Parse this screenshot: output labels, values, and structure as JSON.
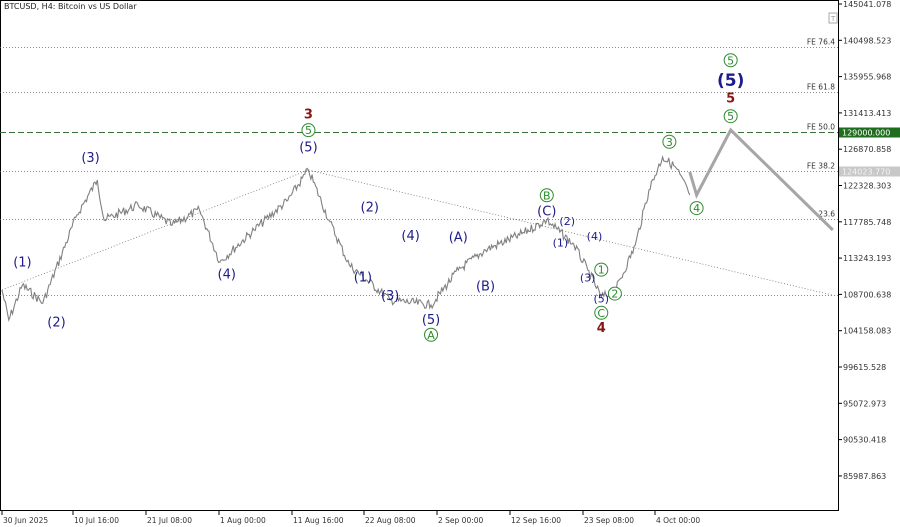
{
  "title": "BTCUSD, H4:  Bitcoin vs US Dollar",
  "colors": {
    "price": "#808080",
    "projection": "#a6a6a6",
    "navy": "#1c1c8a",
    "green": "#2e8b2e",
    "red": "#8b1414",
    "target_label_bg": "#1f6e1f",
    "fe38_label_bg": "#c8c8c8"
  },
  "chart_data": {
    "type": "line",
    "title": "BTCUSD, H4:  Bitcoin vs US Dollar",
    "x_start": "2025-06-30",
    "x_ticks": [
      "30 Jun 2025",
      "10 Jul 16:00",
      "21 Jul 08:00",
      "1 Aug 00:00",
      "11 Aug 16:00",
      "22 Aug 08:00",
      "2 Sep 00:00",
      "12 Sep 16:00",
      "23 Sep 08:00",
      "4 Oct 00:00"
    ],
    "y_ticks": [
      "145041.078",
      "140498.523",
      "135955.968",
      "131413.413",
      "126870.858",
      "122328.303",
      "117785.748",
      "113243.193",
      "108700.638",
      "104158.083",
      "99615.528",
      "95072.973",
      "90530.418",
      "85987.863"
    ],
    "ylim": [
      85987.863,
      145041.078
    ],
    "grid": false,
    "price_pivots": [
      [
        "2025-06-30",
        109251
      ],
      [
        "2025-07-01",
        105495
      ],
      [
        "2025-07-03",
        109875
      ],
      [
        "2025-07-06",
        107622
      ],
      [
        "2025-07-11",
        118635
      ],
      [
        "2025-07-14",
        123015
      ],
      [
        "2025-07-15",
        118009
      ],
      [
        "2025-07-20",
        119886
      ],
      [
        "2025-07-25",
        117383
      ],
      [
        "2025-07-29",
        119260
      ],
      [
        "2025-08-01",
        112753
      ],
      [
        "2025-08-06",
        116757
      ],
      [
        "2025-08-11",
        120511
      ],
      [
        "2025-08-14",
        124266
      ],
      [
        "2025-08-17",
        118009
      ],
      [
        "2025-08-20",
        112377
      ],
      [
        "2025-08-26",
        107997
      ],
      [
        "2025-09-01",
        107372
      ],
      [
        "2025-09-05",
        111752
      ],
      [
        "2025-09-09",
        114255
      ],
      [
        "2025-09-14",
        116132
      ],
      [
        "2025-09-18",
        118009
      ],
      [
        "2025-09-22",
        114881
      ],
      [
        "2025-09-24",
        111752
      ],
      [
        "2025-09-26",
        108373
      ],
      [
        "2025-09-28",
        108999
      ],
      [
        "2025-10-01",
        114881
      ],
      [
        "2025-10-03",
        121763
      ],
      [
        "2025-10-05",
        125893
      ],
      [
        "2025-10-07",
        124516
      ],
      [
        "2025-10-09",
        121137
      ]
    ],
    "projection": [
      [
        "2025-10-09",
        124015
      ],
      [
        "2025-10-10",
        121137
      ],
      [
        "2025-10-15",
        129271
      ],
      [
        "2025-10-30",
        116757
      ]
    ],
    "levels": [
      {
        "label": "FE 76.4",
        "price": 139600,
        "style": "dotted"
      },
      {
        "label": "FE 61.8",
        "price": 133970,
        "style": "dotted"
      },
      {
        "label": "FE 50.0",
        "price": 129000,
        "style": "dashed-green",
        "tag": "129000.000"
      },
      {
        "label": "FE 38.2",
        "price": 124150,
        "style": "dotted",
        "tag": "124023.770"
      },
      {
        "label": "23.6",
        "price": 118150,
        "style": "dotted"
      },
      {
        "label": "",
        "price": 108600,
        "style": "dotted"
      }
    ],
    "trendlines": [
      [
        [
          "2025-06-30",
          109251
        ],
        [
          "2025-08-14",
          124266
        ]
      ],
      [
        [
          "2025-08-14",
          124266
        ],
        [
          "2025-10-30",
          108600
        ]
      ]
    ],
    "wave_labels": [
      {
        "text": "(1)",
        "style": "navy",
        "date": "2025-07-03",
        "price": 112200
      },
      {
        "text": "(2)",
        "style": "navy",
        "date": "2025-07-08",
        "price": 104700
      },
      {
        "text": "(3)",
        "style": "navy",
        "date": "2025-07-13",
        "price": 125300
      },
      {
        "text": "(4)",
        "style": "navy",
        "date": "2025-08-02",
        "price": 110700
      },
      {
        "text": "(5)",
        "style": "navy",
        "date": "2025-08-14",
        "price": 126600
      },
      {
        "text": "5",
        "style": "green",
        "date": "2025-08-14",
        "price": 128750
      },
      {
        "text": "3",
        "style": "red",
        "date": "2025-08-14",
        "price": 130700
      },
      {
        "text": "(2)",
        "style": "navy",
        "date": "2025-08-23",
        "price": 119100
      },
      {
        "text": "(1)",
        "style": "navy",
        "date": "2025-08-22",
        "price": 110300
      },
      {
        "text": "(3)",
        "style": "navy",
        "date": "2025-08-26",
        "price": 108000
      },
      {
        "text": "(4)",
        "style": "navy",
        "date": "2025-08-29",
        "price": 115500
      },
      {
        "text": "(5)",
        "style": "navy",
        "date": "2025-09-01",
        "price": 105000
      },
      {
        "text": "A",
        "style": "green",
        "date": "2025-09-01",
        "price": 103150
      },
      {
        "text": "(A)",
        "style": "navy",
        "date": "2025-09-05",
        "price": 115300
      },
      {
        "text": "(B)",
        "style": "navy",
        "date": "2025-09-09",
        "price": 109200
      },
      {
        "text": "B",
        "style": "green",
        "date": "2025-09-18",
        "price": 120600
      },
      {
        "text": "(C)",
        "style": "navy",
        "date": "2025-09-18",
        "price": 118600
      },
      {
        "text": "(2)",
        "style": "navy",
        "date": "2025-09-21",
        "price": 117400,
        "small": true
      },
      {
        "text": "(1)",
        "style": "navy",
        "date": "2025-09-20",
        "price": 114700,
        "small": true
      },
      {
        "text": "(4)",
        "style": "navy",
        "date": "2025-09-25",
        "price": 115500,
        "small": true
      },
      {
        "text": "(3)",
        "style": "navy",
        "date": "2025-09-24",
        "price": 110300,
        "small": true
      },
      {
        "text": "1",
        "style": "green",
        "date": "2025-09-26",
        "price": 111300
      },
      {
        "text": "(5)",
        "style": "navy",
        "date": "2025-09-26",
        "price": 107700,
        "small": true
      },
      {
        "text": "2",
        "style": "green",
        "date": "2025-09-28",
        "price": 108300
      },
      {
        "text": "C",
        "style": "green",
        "date": "2025-09-26",
        "price": 105900
      },
      {
        "text": "4",
        "style": "red",
        "date": "2025-09-26",
        "price": 104000
      },
      {
        "text": "3",
        "style": "green",
        "date": "2025-10-06",
        "price": 127300
      },
      {
        "text": "4",
        "style": "green",
        "date": "2025-10-10",
        "price": 119000
      },
      {
        "text": "5",
        "style": "green",
        "date": "2025-10-15",
        "price": 130500
      },
      {
        "text": "5",
        "style": "red",
        "date": "2025-10-15",
        "price": 132700
      },
      {
        "text": "(5)",
        "style": "navy",
        "date": "2025-10-15",
        "price": 134800,
        "big": true
      },
      {
        "text": "5",
        "style": "green",
        "date": "2025-10-15",
        "price": 137500
      }
    ]
  }
}
